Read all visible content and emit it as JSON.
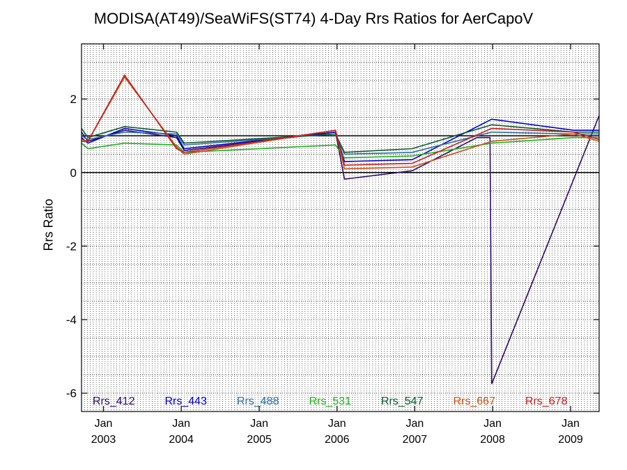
{
  "chart_data": {
    "type": "line",
    "title": "MODISA(AT49)/SeaWiFS(ST74) 4-Day Rrs Ratios for AerCapoV",
    "xlabel": "",
    "ylabel": "Rrs Ratio",
    "xlim": [
      "2002-09-20",
      "2009-05-15"
    ],
    "ylim": [
      -6.5,
      3.5
    ],
    "y_ticks": [
      -6,
      -4,
      -2,
      0,
      2
    ],
    "x_ticks": [
      {
        "date": "2003-01-01",
        "label": "Jan",
        "year": "2003"
      },
      {
        "date": "2004-01-01",
        "label": "Jan",
        "year": "2004"
      },
      {
        "date": "2005-01-01",
        "label": "Jan",
        "year": "2005"
      },
      {
        "date": "2006-01-01",
        "label": "Jan",
        "year": "2006"
      },
      {
        "date": "2007-01-01",
        "label": "Jan",
        "year": "2007"
      },
      {
        "date": "2008-01-01",
        "label": "Jan",
        "year": "2008"
      },
      {
        "date": "2009-01-01",
        "label": "Jan",
        "year": "2009"
      }
    ],
    "reference_lines": [
      0,
      1
    ],
    "grid": true,
    "legend_position": "bottom",
    "series": [
      {
        "name": "Rrs_412",
        "color": "#2a0a6e",
        "points": [
          [
            "2002-09-20",
            1.1
          ],
          [
            "2002-10-20",
            0.85
          ],
          [
            "2003-04-10",
            1.15
          ],
          [
            "2003-12-10",
            0.95
          ],
          [
            "2004-01-15",
            0.6
          ],
          [
            "2005-12-25",
            1.1
          ],
          [
            "2006-02-05",
            -0.18
          ],
          [
            "2006-12-20",
            0.05
          ],
          [
            "2007-10-20",
            0.95
          ],
          [
            "2007-12-20",
            0.95
          ],
          [
            "2007-12-28",
            -5.75
          ],
          [
            "2009-05-15",
            1.55
          ]
        ]
      },
      {
        "name": "Rrs_443",
        "color": "#0000c8",
        "points": [
          [
            "2002-09-20",
            0.95
          ],
          [
            "2002-10-20",
            0.8
          ],
          [
            "2003-04-10",
            1.2
          ],
          [
            "2003-12-10",
            1.0
          ],
          [
            "2004-01-15",
            0.65
          ],
          [
            "2005-12-25",
            1.1
          ],
          [
            "2006-02-05",
            0.3
          ],
          [
            "2006-12-20",
            0.35
          ],
          [
            "2007-12-28",
            1.45
          ],
          [
            "2009-01-15",
            1.15
          ],
          [
            "2009-05-15",
            1.15
          ]
        ]
      },
      {
        "name": "Rrs_488",
        "color": "#2f6fa0",
        "points": [
          [
            "2002-09-20",
            1.0
          ],
          [
            "2002-10-20",
            0.9
          ],
          [
            "2003-04-10",
            1.1
          ],
          [
            "2003-12-10",
            1.05
          ],
          [
            "2004-01-15",
            0.75
          ],
          [
            "2005-12-25",
            1.05
          ],
          [
            "2006-02-05",
            0.5
          ],
          [
            "2006-12-20",
            0.55
          ],
          [
            "2007-12-28",
            1.1
          ],
          [
            "2009-01-15",
            1.05
          ],
          [
            "2009-05-15",
            1.05
          ]
        ]
      },
      {
        "name": "Rrs_531",
        "color": "#19b319",
        "points": [
          [
            "2002-09-20",
            0.8
          ],
          [
            "2002-10-20",
            0.65
          ],
          [
            "2003-04-10",
            0.8
          ],
          [
            "2003-12-10",
            0.75
          ],
          [
            "2004-01-15",
            0.55
          ],
          [
            "2005-12-25",
            0.75
          ],
          [
            "2006-02-05",
            0.4
          ],
          [
            "2006-12-20",
            0.45
          ],
          [
            "2007-12-28",
            0.8
          ],
          [
            "2009-01-15",
            0.95
          ],
          [
            "2009-05-15",
            0.95
          ]
        ]
      },
      {
        "name": "Rrs_547",
        "color": "#0a5a2a",
        "points": [
          [
            "2002-09-20",
            1.2
          ],
          [
            "2002-10-20",
            0.95
          ],
          [
            "2003-04-10",
            1.25
          ],
          [
            "2003-12-10",
            1.1
          ],
          [
            "2004-01-15",
            0.8
          ],
          [
            "2005-12-25",
            1.05
          ],
          [
            "2006-02-05",
            0.55
          ],
          [
            "2006-12-20",
            0.65
          ],
          [
            "2007-12-28",
            1.3
          ],
          [
            "2009-01-15",
            1.1
          ],
          [
            "2009-05-15",
            1.1
          ]
        ]
      },
      {
        "name": "Rrs_667",
        "color": "#c85014",
        "points": [
          [
            "2002-09-20",
            0.9
          ],
          [
            "2002-10-20",
            0.85
          ],
          [
            "2003-04-10",
            2.6
          ],
          [
            "2003-12-10",
            0.7
          ],
          [
            "2004-01-15",
            0.5
          ],
          [
            "2005-12-25",
            1.15
          ],
          [
            "2006-02-05",
            0.1
          ],
          [
            "2006-12-20",
            0.15
          ],
          [
            "2007-12-28",
            0.85
          ],
          [
            "2009-01-15",
            1.05
          ],
          [
            "2009-05-15",
            0.85
          ]
        ]
      },
      {
        "name": "Rrs_678",
        "color": "#c81e1e",
        "points": [
          [
            "2002-09-20",
            0.85
          ],
          [
            "2002-10-20",
            0.85
          ],
          [
            "2003-04-10",
            2.65
          ],
          [
            "2003-12-10",
            0.65
          ],
          [
            "2004-01-15",
            0.55
          ],
          [
            "2005-12-25",
            1.15
          ],
          [
            "2006-02-05",
            0.2
          ],
          [
            "2006-12-20",
            0.25
          ],
          [
            "2007-12-28",
            1.2
          ],
          [
            "2009-01-15",
            1.1
          ],
          [
            "2009-05-15",
            0.9
          ]
        ]
      }
    ]
  }
}
